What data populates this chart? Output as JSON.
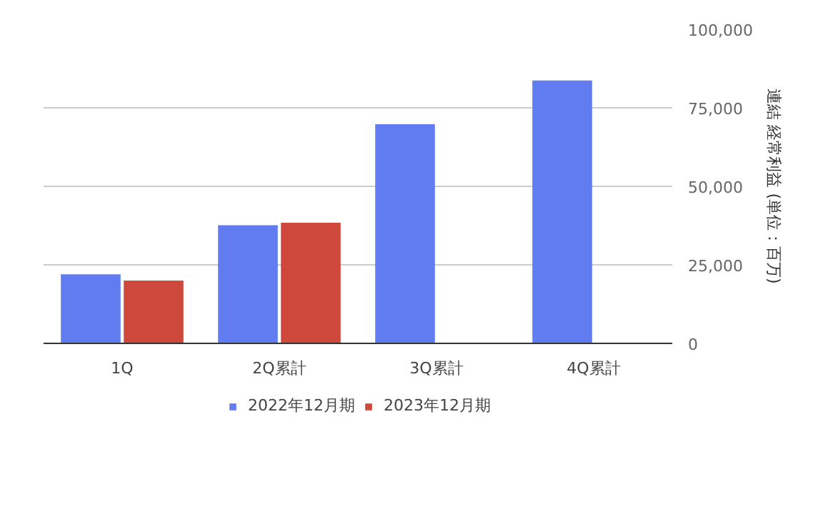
{
  "chart_data": {
    "type": "bar",
    "categories": [
      "1Q",
      "2Q累計",
      "3Q累計",
      "4Q累計"
    ],
    "series": [
      {
        "name": "2022年12月期",
        "color": "#617bf0",
        "values": [
          22000,
          37600,
          69800,
          83700
        ]
      },
      {
        "name": "2023年12月期",
        "color": "#cf483c",
        "values": [
          20000,
          38400,
          null,
          null
        ]
      }
    ],
    "ylabel": "連結 経常利益 (単位：百万)",
    "ylim": [
      0,
      100000
    ],
    "yticks": [
      {
        "value": 0,
        "label": "0"
      },
      {
        "value": 25000,
        "label": "25,000"
      },
      {
        "value": 50000,
        "label": "50,000"
      },
      {
        "value": 75000,
        "label": "75,000"
      },
      {
        "value": 100000,
        "label": "100,000"
      }
    ],
    "grid": "y",
    "legend": "bottom"
  }
}
